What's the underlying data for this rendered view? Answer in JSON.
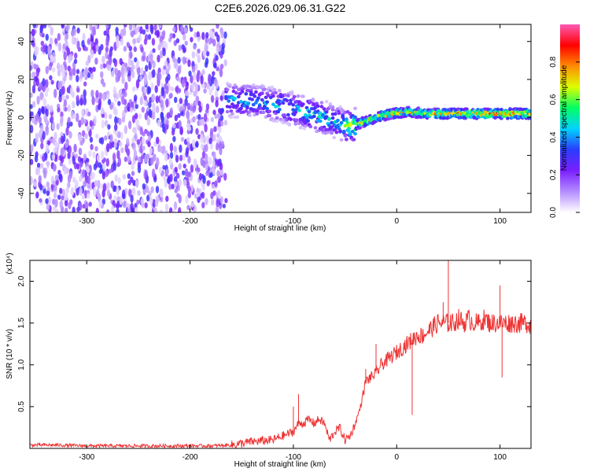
{
  "title": "C2E6.2026.029.06.31.G22",
  "chart_data": [
    {
      "type": "heatmap",
      "title": "C2E6.2026.029.06.31.G22",
      "xlabel": "Height of straight line (km)",
      "ylabel": "Frequency (Hz)",
      "xlim": [
        -355,
        130
      ],
      "ylim": [
        -50,
        49
      ],
      "x_ticks": [
        -300,
        -200,
        -100,
        0,
        100
      ],
      "y_ticks": [
        -40,
        -20,
        0,
        20,
        40
      ],
      "colorbar": {
        "label": "Normalized spectral amplitude",
        "range": [
          0,
          1
        ],
        "ticks": [
          0.0,
          0.2,
          0.4,
          0.6,
          0.8
        ],
        "colors": [
          "#ffffff",
          "#b48cff",
          "#7a1fff",
          "#2a3cff",
          "#00d2ff",
          "#00ff64",
          "#dcff00",
          "#ff8c00",
          "#ff0000",
          "#ff5ab4"
        ]
      },
      "noise_region_x": [
        -355,
        -165
      ],
      "trace": [
        {
          "x": -165,
          "y": 9,
          "amp": 0.45
        },
        {
          "x": -150,
          "y": 9,
          "amp": 0.5
        },
        {
          "x": -130,
          "y": 8,
          "amp": 0.45
        },
        {
          "x": -110,
          "y": 6,
          "amp": 0.5
        },
        {
          "x": -90,
          "y": 3,
          "amp": 0.5
        },
        {
          "x": -70,
          "y": 0,
          "amp": 0.55
        },
        {
          "x": -55,
          "y": -3,
          "amp": 0.5
        },
        {
          "x": -45,
          "y": -5,
          "amp": 0.75
        },
        {
          "x": -35,
          "y": -3,
          "amp": 0.75
        },
        {
          "x": -20,
          "y": 0,
          "amp": 0.8
        },
        {
          "x": -5,
          "y": 2,
          "amp": 0.85
        },
        {
          "x": 10,
          "y": 3,
          "amp": 0.8
        },
        {
          "x": 30,
          "y": 2,
          "amp": 0.8
        },
        {
          "x": 60,
          "y": 2,
          "amp": 0.9
        },
        {
          "x": 90,
          "y": 2,
          "amp": 0.95
        },
        {
          "x": 130,
          "y": 2,
          "amp": 0.9
        }
      ]
    },
    {
      "type": "line",
      "xlabel": "Height of straight line (km)",
      "ylabel": "SNR (10 * v/v)",
      "y_multiplier": "(x10⁴)",
      "xlim": [
        -355,
        130
      ],
      "ylim": [
        0,
        2.25
      ],
      "x_ticks": [
        -300,
        -200,
        -100,
        0,
        100
      ],
      "y_ticks": [
        0.5,
        1.0,
        1.5,
        2.0
      ],
      "color": "#ee3333",
      "series": [
        {
          "x": [
            -355,
            -330,
            -300,
            -270,
            -240,
            -210,
            -180,
            -160,
            -140,
            -120,
            -110,
            -100,
            -95,
            -90,
            -85,
            -80,
            -75,
            -70,
            -65,
            -60,
            -55,
            -50,
            -45,
            -40,
            -35,
            -30,
            -25,
            -20,
            -15,
            -10,
            -5,
            0,
            5,
            10,
            15,
            20,
            25,
            30,
            35,
            40,
            45,
            50,
            55,
            60,
            65,
            70,
            75,
            80,
            85,
            90,
            95,
            100,
            105,
            110,
            115,
            120,
            125,
            130
          ],
          "y": [
            0.04,
            0.04,
            0.03,
            0.03,
            0.03,
            0.03,
            0.03,
            0.04,
            0.08,
            0.1,
            0.15,
            0.2,
            0.3,
            0.3,
            0.35,
            0.3,
            0.35,
            0.3,
            0.1,
            0.2,
            0.25,
            0.1,
            0.15,
            0.3,
            0.5,
            0.8,
            0.85,
            0.9,
            1.0,
            1.05,
            1.1,
            1.15,
            1.2,
            1.25,
            1.3,
            1.35,
            1.35,
            1.4,
            1.45,
            1.5,
            1.5,
            1.5,
            1.5,
            1.55,
            1.5,
            1.55,
            1.5,
            1.5,
            1.55,
            1.5,
            1.5,
            1.5,
            1.5,
            1.5,
            1.5,
            1.5,
            1.5,
            1.48
          ]
        }
      ],
      "spikes": [
        {
          "x": -100,
          "y": 0.5
        },
        {
          "x": -95,
          "y": 0.65
        },
        {
          "x": -30,
          "y": 0.95
        },
        {
          "x": -20,
          "y": 1.25
        },
        {
          "x": -10,
          "y": 1.05
        },
        {
          "x": 15,
          "y": 0.4
        },
        {
          "x": 45,
          "y": 1.75
        },
        {
          "x": 50,
          "y": 2.25
        },
        {
          "x": 52,
          "y": 1.6
        },
        {
          "x": 100,
          "y": 1.95
        },
        {
          "x": 102,
          "y": 0.85
        }
      ]
    }
  ]
}
